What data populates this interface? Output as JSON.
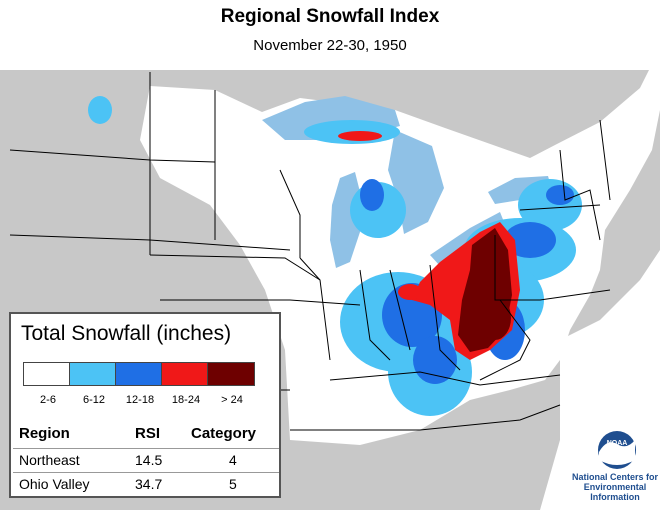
{
  "header": {
    "title": "Regional Snowfall Index",
    "subtitle": "November 22-30, 1950"
  },
  "legend": {
    "title": "Total Snowfall (inches)",
    "bins": [
      {
        "label": "2-6",
        "color": "#ffffff"
      },
      {
        "label": "6-12",
        "color": "#4cc3f5"
      },
      {
        "label": "12-18",
        "color": "#1f6fe5"
      },
      {
        "label": "18-24",
        "color": "#f01818"
      },
      {
        "label": "> 24",
        "color": "#6e0000"
      }
    ]
  },
  "rsi_table": {
    "headers": [
      "Region",
      "RSI",
      "Category"
    ],
    "rows": [
      {
        "region": "Northeast",
        "rsi": "14.5",
        "category": "4"
      },
      {
        "region": "Ohio Valley",
        "rsi": "34.7",
        "category": "5"
      }
    ]
  },
  "logo": {
    "seal_text": "NOAA",
    "org_line1": "National Centers for",
    "org_line2": "Environmental",
    "org_line3": "Information"
  },
  "colors": {
    "land_background": "#c8c8c8",
    "analysis_area": "#ffffff",
    "water": "#9dc8e6",
    "boundaries": "#000000"
  }
}
